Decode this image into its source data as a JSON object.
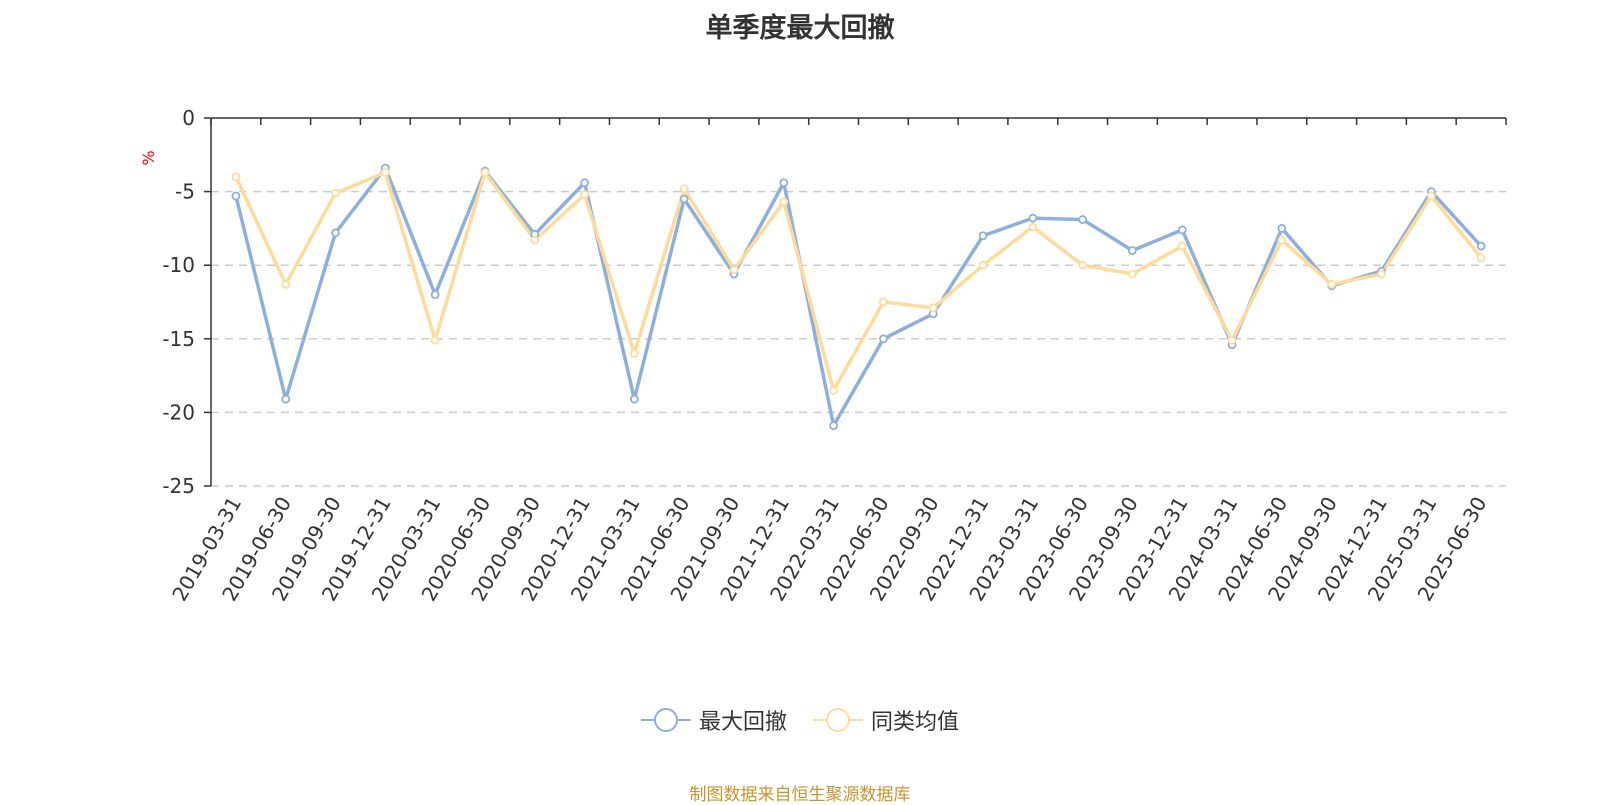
{
  "chart_data": {
    "type": "line",
    "title": "单季度最大回撤",
    "ylabel": "%",
    "ylim": [
      -25,
      0
    ],
    "yticks": [
      0,
      -5,
      -10,
      -15,
      -20,
      -25
    ],
    "grid": "horizontal dashed",
    "legend_position": "bottom-center",
    "categories": [
      "2019-03-31",
      "2019-06-30",
      "2019-09-30",
      "2019-12-31",
      "2020-03-31",
      "2020-06-30",
      "2020-09-30",
      "2020-12-31",
      "2021-03-31",
      "2021-06-30",
      "2021-09-30",
      "2021-12-31",
      "2022-03-31",
      "2022-06-30",
      "2022-09-30",
      "2022-12-31",
      "2023-03-31",
      "2023-06-30",
      "2023-09-30",
      "2023-12-31",
      "2024-03-31",
      "2024-06-30",
      "2024-09-30",
      "2024-12-31",
      "2025-03-31",
      "2025-06-30"
    ],
    "series": [
      {
        "name": "最大回撤",
        "color": "#8eaedd",
        "values": [
          -5.3,
          -19.1,
          -7.8,
          -3.4,
          -12.0,
          -3.6,
          -7.9,
          -4.4,
          -19.1,
          -5.5,
          -10.6,
          -4.4,
          -20.9,
          -15.0,
          -13.3,
          -8.0,
          -6.8,
          -6.9,
          -9.0,
          -7.6,
          -15.4,
          -7.5,
          -11.4,
          -10.4,
          -5.0,
          -8.7
        ]
      },
      {
        "name": "同类均值",
        "color": "#fddb9a",
        "values": [
          -4.0,
          -11.3,
          -5.1,
          -3.7,
          -15.1,
          -3.7,
          -8.3,
          -5.2,
          -16.0,
          -4.8,
          -10.3,
          -5.7,
          -18.5,
          -12.5,
          -12.9,
          -10.0,
          -7.4,
          -10.0,
          -10.6,
          -8.7,
          -15.1,
          -8.3,
          -11.3,
          -10.6,
          -5.3,
          -9.5
        ]
      }
    ]
  },
  "footer": {
    "source_note": "制图数据来自恒生聚源数据库",
    "source_color": "#c9942c"
  },
  "colors": {
    "axis": "#333333",
    "grid": "#cccccc",
    "ylabel": "#ff0000"
  }
}
